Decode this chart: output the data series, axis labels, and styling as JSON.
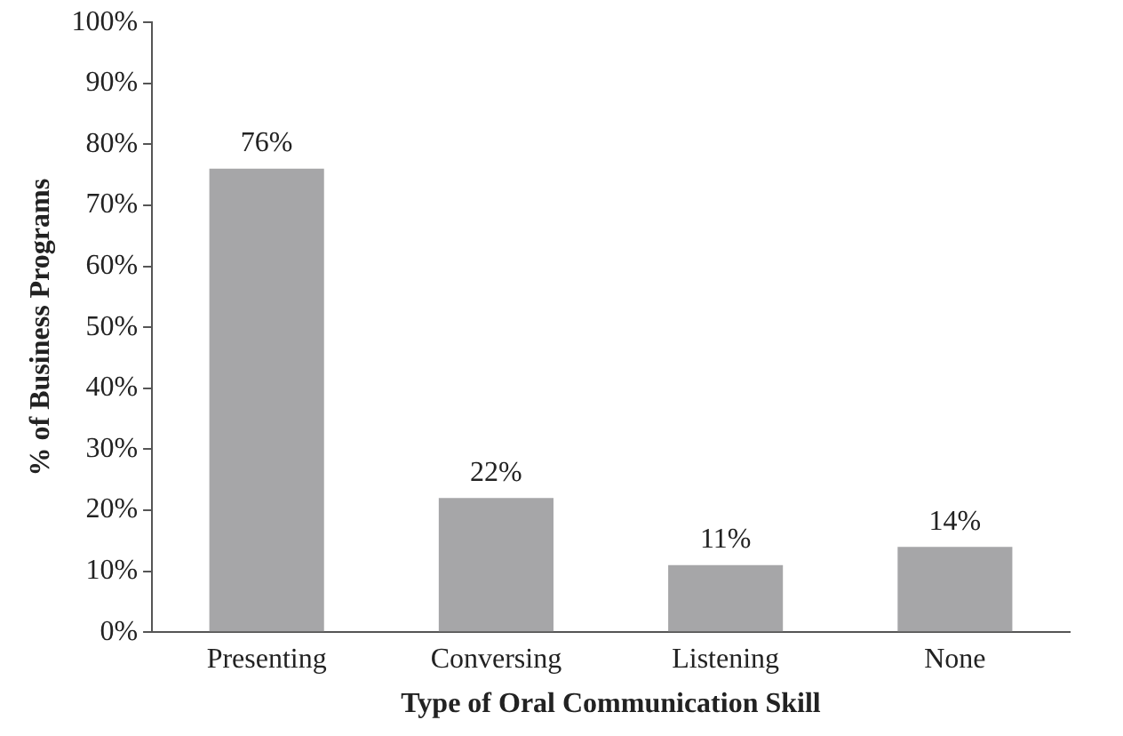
{
  "chart_data": {
    "type": "bar",
    "xlabel": "Type of Oral Communication Skill",
    "ylabel": "% of Business Programs",
    "categories": [
      "Presenting",
      "Conversing",
      "Listening",
      "None"
    ],
    "values": [
      76,
      22,
      11,
      14
    ],
    "color": "#a6a6a8",
    "value_labels": [
      "76%",
      "22%",
      "11%",
      "14%"
    ],
    "ylim": [
      0,
      100
    ],
    "yticks": [
      {
        "value": 0,
        "label": "0%"
      },
      {
        "value": 10,
        "label": "10%"
      },
      {
        "value": 20,
        "label": "20%"
      },
      {
        "value": 30,
        "label": "30%"
      },
      {
        "value": 40,
        "label": "40%"
      },
      {
        "value": 50,
        "label": "50%"
      },
      {
        "value": 60,
        "label": "60%"
      },
      {
        "value": 70,
        "label": "70%"
      },
      {
        "value": 80,
        "label": "80%"
      },
      {
        "value": 90,
        "label": "90%"
      },
      {
        "value": 100,
        "label": "100%"
      }
    ],
    "grid": false,
    "legend": false
  }
}
